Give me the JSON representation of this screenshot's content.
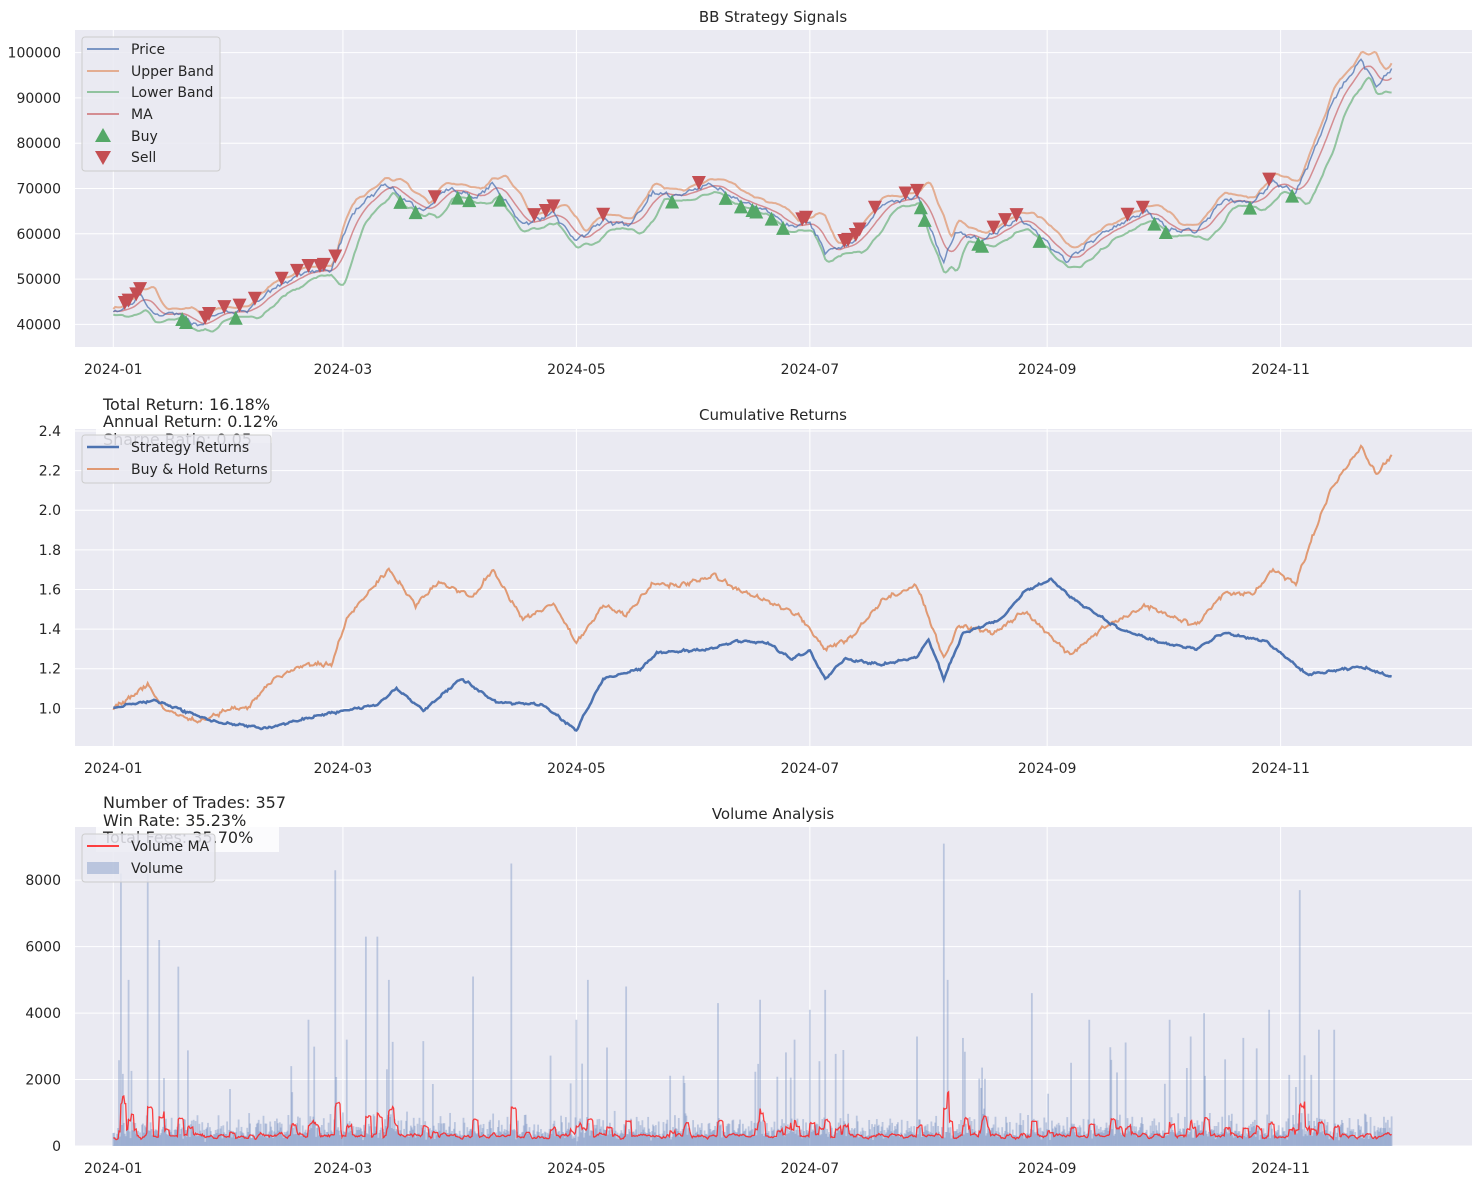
{
  "colors": {
    "axes_bg": "#eaeaf2",
    "grid": "#ffffff",
    "price": "#4c72b0",
    "upper_band": "#dd8452",
    "lower_band": "#55a868",
    "ma": "#c44e52",
    "buy": "#55a868",
    "sell": "#c44e52",
    "strategy": "#4c72b0",
    "buy_hold": "#dd8452",
    "volume": "#4c72b0",
    "volume_ma": "#ff2020"
  },
  "chart_data": [
    {
      "type": "line",
      "title": "BB Strategy Signals",
      "xlabel": "",
      "ylabel": "",
      "x_ticks": [
        "2024-01",
        "2024-03",
        "2024-05",
        "2024-07",
        "2024-09",
        "2024-11"
      ],
      "x_range": [
        "2023-12-22",
        "2024-12-21"
      ],
      "ylim": [
        35000,
        105000
      ],
      "y_ticks": [
        40000,
        50000,
        60000,
        70000,
        80000,
        90000,
        100000
      ],
      "grid": true,
      "legend_position": "upper-left",
      "legend": [
        "Price",
        "Upper Band",
        "Lower Band",
        "MA",
        "Buy",
        "Sell"
      ],
      "price_anchors": [
        [
          "2024-01-01",
          42500
        ],
        [
          "2024-01-05",
          44000
        ],
        [
          "2024-01-08",
          46500
        ],
        [
          "2024-01-12",
          42000
        ],
        [
          "2024-01-18",
          42500
        ],
        [
          "2024-01-23",
          39500
        ],
        [
          "2024-01-28",
          42500
        ],
        [
          "2024-02-05",
          43000
        ],
        [
          "2024-02-12",
          48000
        ],
        [
          "2024-02-20",
          51500
        ],
        [
          "2024-02-27",
          52000
        ],
        [
          "2024-03-02",
          62000
        ],
        [
          "2024-03-05",
          66000
        ],
        [
          "2024-03-12",
          71000
        ],
        [
          "2024-03-18",
          67000
        ],
        [
          "2024-03-22",
          65000
        ],
        [
          "2024-03-28",
          70000
        ],
        [
          "2024-04-05",
          68000
        ],
        [
          "2024-04-09",
          71000
        ],
        [
          "2024-04-17",
          62000
        ],
        [
          "2024-04-25",
          64500
        ],
        [
          "2024-05-01",
          58500
        ],
        [
          "2024-05-08",
          63000
        ],
        [
          "2024-05-15",
          62000
        ],
        [
          "2024-05-21",
          69000
        ],
        [
          "2024-05-28",
          68500
        ],
        [
          "2024-06-05",
          71000
        ],
        [
          "2024-06-12",
          67500
        ],
        [
          "2024-06-20",
          65000
        ],
        [
          "2024-06-26",
          61500
        ],
        [
          "2024-07-01",
          62500
        ],
        [
          "2024-07-05",
          56000
        ],
        [
          "2024-07-12",
          58000
        ],
        [
          "2024-07-20",
          66500
        ],
        [
          "2024-07-29",
          68500
        ],
        [
          "2024-08-05",
          53500
        ],
        [
          "2024-08-08",
          60500
        ],
        [
          "2024-08-15",
          58500
        ],
        [
          "2024-08-25",
          63500
        ],
        [
          "2024-09-01",
          58000
        ],
        [
          "2024-09-06",
          54000
        ],
        [
          "2024-09-15",
          60000
        ],
        [
          "2024-09-27",
          65000
        ],
        [
          "2024-10-03",
          61000
        ],
        [
          "2024-10-10",
          60500
        ],
        [
          "2024-10-17",
          67500
        ],
        [
          "2024-10-25",
          67000
        ],
        [
          "2024-10-30",
          71500
        ],
        [
          "2024-11-05",
          69000
        ],
        [
          "2024-11-11",
          81000
        ],
        [
          "2024-11-15",
          90000
        ],
        [
          "2024-11-22",
          98500
        ],
        [
          "2024-11-26",
          92500
        ],
        [
          "2024-11-30",
          96500
        ]
      ]
    },
    {
      "type": "line",
      "title": "Cumulative Returns",
      "xlabel": "",
      "ylabel": "",
      "x_ticks": [
        "2024-01",
        "2024-03",
        "2024-05",
        "2024-07",
        "2024-09",
        "2024-11"
      ],
      "x_range": [
        "2023-12-22",
        "2024-12-21"
      ],
      "ylim": [
        0.81,
        2.41
      ],
      "y_ticks": [
        1.0,
        1.2,
        1.4,
        1.6,
        1.8,
        2.0,
        2.2,
        2.4
      ],
      "grid": true,
      "legend_position": "upper-left",
      "series": [
        {
          "name": "Strategy Returns",
          "points": [
            [
              "2024-01-01",
              1.0
            ],
            [
              "2024-01-05",
              1.02
            ],
            [
              "2024-01-12",
              1.04
            ],
            [
              "2024-01-22",
              0.97
            ],
            [
              "2024-01-28",
              0.93
            ],
            [
              "2024-02-10",
              0.9
            ],
            [
              "2024-02-25",
              0.97
            ],
            [
              "2024-03-10",
              1.02
            ],
            [
              "2024-03-15",
              1.1
            ],
            [
              "2024-03-22",
              0.99
            ],
            [
              "2024-04-01",
              1.15
            ],
            [
              "2024-04-10",
              1.03
            ],
            [
              "2024-04-22",
              1.02
            ],
            [
              "2024-05-01",
              0.89
            ],
            [
              "2024-05-08",
              1.15
            ],
            [
              "2024-05-18",
              1.2
            ],
            [
              "2024-05-22",
              1.28
            ],
            [
              "2024-06-05",
              1.3
            ],
            [
              "2024-06-12",
              1.34
            ],
            [
              "2024-06-20",
              1.33
            ],
            [
              "2024-06-26",
              1.25
            ],
            [
              "2024-07-01",
              1.29
            ],
            [
              "2024-07-05",
              1.15
            ],
            [
              "2024-07-10",
              1.25
            ],
            [
              "2024-07-20",
              1.22
            ],
            [
              "2024-07-29",
              1.26
            ],
            [
              "2024-08-01",
              1.35
            ],
            [
              "2024-08-05",
              1.15
            ],
            [
              "2024-08-10",
              1.38
            ],
            [
              "2024-08-20",
              1.45
            ],
            [
              "2024-08-26",
              1.59
            ],
            [
              "2024-09-02",
              1.65
            ],
            [
              "2024-09-08",
              1.55
            ],
            [
              "2024-09-20",
              1.4
            ],
            [
              "2024-10-01",
              1.33
            ],
            [
              "2024-10-10",
              1.3
            ],
            [
              "2024-10-17",
              1.38
            ],
            [
              "2024-10-28",
              1.34
            ],
            [
              "2024-11-08",
              1.17
            ],
            [
              "2024-11-22",
              1.21
            ],
            [
              "2024-11-30",
              1.16
            ]
          ]
        },
        {
          "name": "Buy & Hold Returns",
          "points": [
            [
              "2024-01-01",
              1.0
            ],
            [
              "2024-01-05",
              1.05
            ],
            [
              "2024-01-10",
              1.12
            ],
            [
              "2024-01-14",
              1.0
            ],
            [
              "2024-01-23",
              0.93
            ],
            [
              "2024-02-01",
              1.0
            ],
            [
              "2024-02-05",
              1.0
            ],
            [
              "2024-02-12",
              1.15
            ],
            [
              "2024-02-20",
              1.22
            ],
            [
              "2024-02-27",
              1.22
            ],
            [
              "2024-03-02",
              1.45
            ],
            [
              "2024-03-06",
              1.55
            ],
            [
              "2024-03-13",
              1.7
            ],
            [
              "2024-03-20",
              1.52
            ],
            [
              "2024-03-26",
              1.64
            ],
            [
              "2024-04-04",
              1.56
            ],
            [
              "2024-04-09",
              1.7
            ],
            [
              "2024-04-17",
              1.45
            ],
            [
              "2024-04-25",
              1.53
            ],
            [
              "2024-05-01",
              1.33
            ],
            [
              "2024-05-08",
              1.52
            ],
            [
              "2024-05-14",
              1.47
            ],
            [
              "2024-05-21",
              1.63
            ],
            [
              "2024-05-28",
              1.62
            ],
            [
              "2024-06-06",
              1.67
            ],
            [
              "2024-06-12",
              1.6
            ],
            [
              "2024-06-20",
              1.54
            ],
            [
              "2024-06-28",
              1.47
            ],
            [
              "2024-07-05",
              1.3
            ],
            [
              "2024-07-12",
              1.36
            ],
            [
              "2024-07-20",
              1.55
            ],
            [
              "2024-07-29",
              1.62
            ],
            [
              "2024-08-05",
              1.25
            ],
            [
              "2024-08-09",
              1.42
            ],
            [
              "2024-08-18",
              1.38
            ],
            [
              "2024-08-26",
              1.49
            ],
            [
              "2024-09-01",
              1.38
            ],
            [
              "2024-09-07",
              1.27
            ],
            [
              "2024-09-15",
              1.4
            ],
            [
              "2024-09-27",
              1.52
            ],
            [
              "2024-10-05",
              1.45
            ],
            [
              "2024-10-10",
              1.42
            ],
            [
              "2024-10-17",
              1.58
            ],
            [
              "2024-10-25",
              1.58
            ],
            [
              "2024-10-30",
              1.7
            ],
            [
              "2024-11-05",
              1.63
            ],
            [
              "2024-11-10",
              1.9
            ],
            [
              "2024-11-14",
              2.1
            ],
            [
              "2024-11-22",
              2.32
            ],
            [
              "2024-11-26",
              2.18
            ],
            [
              "2024-11-30",
              2.28
            ]
          ]
        }
      ],
      "stats": [
        "Total Return: 16.18%",
        "Annual Return: 0.12%",
        "Sharpe Ratio: 0.05"
      ]
    },
    {
      "type": "bar",
      "title": "Volume Analysis",
      "xlabel": "",
      "ylabel": "",
      "x_ticks": [
        "2024-01",
        "2024-03",
        "2024-05",
        "2024-07",
        "2024-09",
        "2024-11"
      ],
      "x_range": [
        "2023-12-22",
        "2024-12-21"
      ],
      "ylim": [
        0,
        9600
      ],
      "y_ticks": [
        0,
        2000,
        4000,
        6000,
        8000
      ],
      "grid": true,
      "legend_position": "upper-left",
      "series": [
        {
          "name": "Volume MA"
        },
        {
          "name": "Volume"
        }
      ],
      "volume_spikes": [
        [
          "2024-01-03",
          8200
        ],
        [
          "2024-01-05",
          5000
        ],
        [
          "2024-01-10",
          8200
        ],
        [
          "2024-01-13",
          6200
        ],
        [
          "2024-01-18",
          5400
        ],
        [
          "2024-02-21",
          3800
        ],
        [
          "2024-02-28",
          8300
        ],
        [
          "2024-03-02",
          3200
        ],
        [
          "2024-03-07",
          6300
        ],
        [
          "2024-03-10",
          6300
        ],
        [
          "2024-03-13",
          5000
        ],
        [
          "2024-04-04",
          5100
        ],
        [
          "2024-04-14",
          8500
        ],
        [
          "2024-05-01",
          3800
        ],
        [
          "2024-05-04",
          5000
        ],
        [
          "2024-05-14",
          4800
        ],
        [
          "2024-06-07",
          4300
        ],
        [
          "2024-06-18",
          4400
        ],
        [
          "2024-07-01",
          4100
        ],
        [
          "2024-07-05",
          4700
        ],
        [
          "2024-08-05",
          9100
        ],
        [
          "2024-08-06",
          5000
        ],
        [
          "2024-08-28",
          4600
        ],
        [
          "2024-09-12",
          3800
        ],
        [
          "2024-10-03",
          3800
        ],
        [
          "2024-10-12",
          4000
        ],
        [
          "2024-10-29",
          4100
        ],
        [
          "2024-11-06",
          7700
        ],
        [
          "2024-11-11",
          3500
        ],
        [
          "2024-11-15",
          3500
        ]
      ],
      "stats": [
        "Number of Trades: 357",
        "Win Rate: 35.23%",
        "Total Fees: 35.70%"
      ]
    }
  ]
}
